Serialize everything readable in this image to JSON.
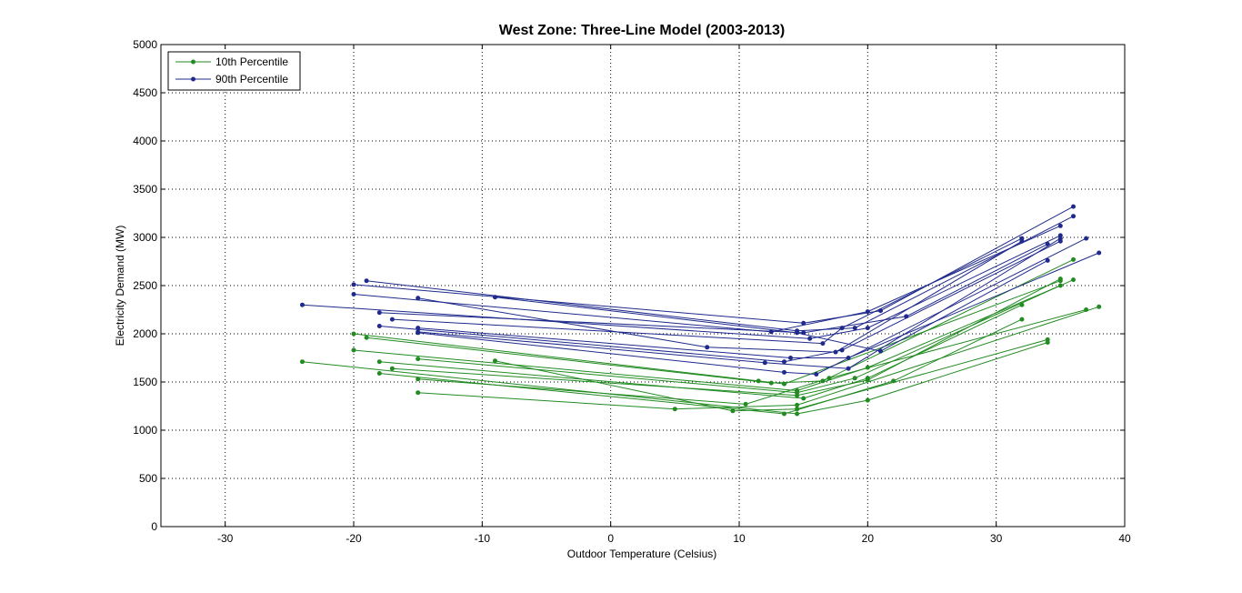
{
  "chart_data": {
    "type": "line",
    "title": "West Zone: Three-Line Model (2003-2013)",
    "xlabel": "Outdoor Temperature (Celsius)",
    "ylabel": "Electricity Demand (MW)",
    "xlim": [
      -35,
      40
    ],
    "ylim": [
      0,
      5000
    ],
    "xticks": [
      -30,
      -20,
      -10,
      0,
      10,
      20,
      30,
      40
    ],
    "yticks": [
      0,
      500,
      1000,
      1500,
      2000,
      2500,
      3000,
      3500,
      4000,
      4500,
      5000
    ],
    "grid": true,
    "legend_position": "top-left",
    "legend": [
      {
        "name": "10th Percentile",
        "color": "#228B22"
      },
      {
        "name": "90th Percentile",
        "color": "#1F2A8C"
      }
    ],
    "series": [
      {
        "name": "10th Percentile",
        "color": "#228B22",
        "x": [
          -24,
          14.5,
          20,
          34
        ],
        "y": [
          1710,
          1170,
          1310,
          1910
        ]
      },
      {
        "name": "10th Percentile",
        "color": "#228B22",
        "x": [
          -20,
          11.5,
          13.5,
          35
        ],
        "y": [
          2000,
          1510,
          1480,
          2550
        ]
      },
      {
        "name": "10th Percentile",
        "color": "#228B22",
        "x": [
          -20,
          14.5,
          20,
          35
        ],
        "y": [
          1830,
          1410,
          1650,
          2500
        ]
      },
      {
        "name": "10th Percentile",
        "color": "#228B22",
        "x": [
          -19,
          12.5,
          16.5,
          36
        ],
        "y": [
          1960,
          1490,
          1510,
          2770
        ]
      },
      {
        "name": "10th Percentile",
        "color": "#228B22",
        "x": [
          -18,
          15,
          20,
          32
        ],
        "y": [
          1710,
          1330,
          1540,
          2300
        ]
      },
      {
        "name": "10th Percentile",
        "color": "#228B22",
        "x": [
          -18,
          13.5,
          22,
          32
        ],
        "y": [
          1590,
          1170,
          1510,
          2150
        ]
      },
      {
        "name": "10th Percentile",
        "color": "#228B22",
        "x": [
          -17,
          14.5,
          20,
          35
        ],
        "y": [
          1640,
          1360,
          1520,
          2570
        ]
      },
      {
        "name": "10th Percentile",
        "color": "#228B22",
        "x": [
          -15,
          14.5,
          19,
          36
        ],
        "y": [
          1740,
          1390,
          1540,
          2560
        ]
      },
      {
        "name": "10th Percentile",
        "color": "#228B22",
        "x": [
          -15,
          10.5,
          17,
          37
        ],
        "y": [
          1530,
          1270,
          1540,
          2250
        ]
      },
      {
        "name": "10th Percentile",
        "color": "#228B22",
        "x": [
          -15,
          5,
          14.5,
          38
        ],
        "y": [
          1390,
          1220,
          1260,
          2280
        ]
      },
      {
        "name": "10th Percentile",
        "color": "#228B22",
        "x": [
          -9,
          9.5,
          14.5,
          34
        ],
        "y": [
          1720,
          1200,
          1220,
          1940
        ]
      },
      {
        "name": "90th Percentile",
        "color": "#1F2A8C",
        "x": [
          -20,
          15,
          21,
          36
        ],
        "y": [
          2510,
          2110,
          2240,
          3320
        ]
      },
      {
        "name": "90th Percentile",
        "color": "#1F2A8C",
        "x": [
          -20,
          12.5,
          20,
          35
        ],
        "y": [
          2410,
          2020,
          2230,
          3120
        ]
      },
      {
        "name": "90th Percentile",
        "color": "#1F2A8C",
        "x": [
          -19,
          14.5,
          19,
          36
        ],
        "y": [
          2550,
          2030,
          2060,
          3220
        ]
      },
      {
        "name": "90th Percentile",
        "color": "#1F2A8C",
        "x": [
          -24,
          15.5,
          20,
          35
        ],
        "y": [
          2300,
          1950,
          2060,
          3020
        ]
      },
      {
        "name": "90th Percentile",
        "color": "#1F2A8C",
        "x": [
          -18,
          15,
          23,
          34
        ],
        "y": [
          2220,
          2010,
          2180,
          2930
        ]
      },
      {
        "name": "90th Percentile",
        "color": "#1F2A8C",
        "x": [
          -17,
          16.5,
          18,
          32
        ],
        "y": [
          2150,
          1900,
          2060,
          2990
        ]
      },
      {
        "name": "90th Percentile",
        "color": "#1F2A8C",
        "x": [
          -15,
          7.5,
          17.5,
          32
        ],
        "y": [
          2370,
          1860,
          1810,
          2960
        ]
      },
      {
        "name": "90th Percentile",
        "color": "#1F2A8C",
        "x": [
          -18,
          13.5,
          18,
          35
        ],
        "y": [
          2080,
          1710,
          1830,
          2960
        ]
      },
      {
        "name": "90th Percentile",
        "color": "#1F2A8C",
        "x": [
          -15,
          14,
          18.5,
          38
        ],
        "y": [
          2060,
          1750,
          1750,
          2840
        ]
      },
      {
        "name": "90th Percentile",
        "color": "#1F2A8C",
        "x": [
          -15,
          13.5,
          16,
          37
        ],
        "y": [
          2010,
          1600,
          1580,
          2990
        ]
      },
      {
        "name": "90th Percentile",
        "color": "#1F2A8C",
        "x": [
          -9,
          14.5,
          21,
          34
        ],
        "y": [
          2380,
          2010,
          1820,
          2760
        ]
      },
      {
        "name": "90th Percentile",
        "color": "#1F2A8C",
        "x": [
          -15,
          12,
          18.5,
          35
        ],
        "y": [
          2020,
          1700,
          1640,
          2990
        ]
      }
    ]
  }
}
